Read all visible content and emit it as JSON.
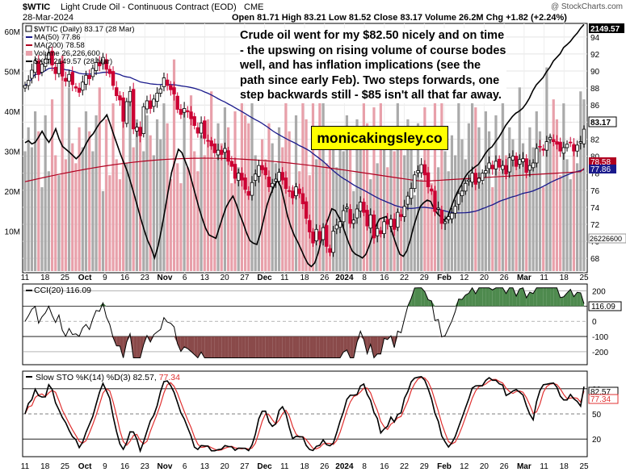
{
  "header": {
    "symbol": "$WTIC",
    "name": "Light Crude Oil - Continuous Contract (EOD)",
    "exchange": "CME",
    "watermark": "@ StockCharts.com",
    "date": "28-Mar-2024",
    "quote": "Open 81.71 High 83.21 Low 81.52 Close 83.17 Volume 26.2M Chg +1.82 (+2.24%)"
  },
  "annotation": {
    "note": "Crude oil went for my $82.50 nicely and on time - the upswing on rising volume of course bodes well, and has inflation implications (see the path since early Feb). Two steps forwards, one step backwards still - $85 isn't all that far away.",
    "site": "monicakingsley.co"
  },
  "legend": {
    "main": "$WTIC (Daily) 83.17 (28 Mar)",
    "ma50": "MA(50) 77.86",
    "ma200": "MA(200) 78.58",
    "volume": "Volume 26,226,600",
    "xoi": "$XOI 2149.57 (28 Mar)",
    "cci": "CCI(20) 116.09",
    "sto_prefix": "Slow STO %K(14) %D(3) 82.57,",
    "sto_d": "77.34"
  },
  "colors": {
    "up": "#000000",
    "down": "#cc0033",
    "ma50": "#1a1a8c",
    "ma200": "#b00020",
    "vol_up": "#aaaaaa",
    "vol_down": "#e8a0aa",
    "cci_fill_pos": "#4e8a4e",
    "cci_fill_neg": "#8a4a4a",
    "sto_d": "#e03030"
  },
  "chart_data": [
    {
      "type": "candlestick",
      "panel": "price",
      "x_labels": [
        "11",
        "18",
        "25",
        "Oct",
        "9",
        "16",
        "23",
        "Nov",
        "6",
        "13",
        "20",
        "27",
        "Dec",
        "11",
        "18",
        "26",
        "2024",
        "8",
        "16",
        "22",
        "29",
        "Feb",
        "12",
        "20",
        "26",
        "Mar",
        "11",
        "18",
        "25"
      ],
      "ylim": [
        66.5,
        95.5
      ],
      "y_ticks": [
        68,
        70,
        72,
        74,
        76,
        78,
        80,
        82,
        84,
        86,
        88,
        90,
        92,
        94
      ],
      "close": [
        88.3,
        88.9,
        90.1,
        91.2,
        89.6,
        90.8,
        91.4,
        92.1,
        90.7,
        89.7,
        90.9,
        89.4,
        88.8,
        89.6,
        88.4,
        88.0,
        87.5,
        88.7,
        89.5,
        89.1,
        90.3,
        91.0,
        90.6,
        91.6,
        90.2,
        89.7,
        88.3,
        87.1,
        86.6,
        84.1,
        86.4,
        87.6,
        83.2,
        83.4,
        82.4,
        85.8,
        86.5,
        85.6,
        86.7,
        87.4,
        87.9,
        89.2,
        88.3,
        87.8,
        87.3,
        85.5,
        84.9,
        85.6,
        85.2,
        84.4,
        83.6,
        82.7,
        83.9,
        82.1,
        81.8,
        81.2,
        80.4,
        80.7,
        80.2,
        80.9,
        79.4,
        78.8,
        77.4,
        78.0,
        77.2,
        76.1,
        75.4,
        76.9,
        77.9,
        78.9,
        78.4,
        77.8,
        76.4,
        76.8,
        77.3,
        78.1,
        77.2,
        76.2,
        75.9,
        75.1,
        76.4,
        75.6,
        74.4,
        72.7,
        71.1,
        69.8,
        71.4,
        70.2,
        71.6,
        69.4,
        68.7,
        71.2,
        71.9,
        72.3,
        73.6,
        74.0,
        72.1,
        72.5,
        73.8,
        74.6,
        73.4,
        71.8,
        73.1,
        70.4,
        71.5,
        70.9,
        72.3,
        72.0,
        72.6,
        71.4,
        73.4,
        72.9,
        74.1,
        75.3,
        76.2,
        77.8,
        78.3,
        79.0,
        77.8,
        76.4,
        75.9,
        73.5,
        73.9,
        72.1,
        72.3,
        72.9,
        73.3,
        74.1,
        75.6,
        75.9,
        76.8,
        77.2,
        78.0,
        76.7,
        77.4,
        78.0,
        78.3,
        79.2,
        78.5,
        79.4,
        78.7,
        78.9,
        77.9,
        79.8,
        80.0,
        78.8,
        79.6,
        79.7,
        78.1,
        78.9,
        79.2,
        80.9,
        81.1,
        80.7,
        81.7,
        82.2,
        81.7,
        81.4,
        80.6,
        81.0,
        81.4,
        81.6,
        80.6,
        81.3,
        81.7,
        83.17
      ]
    },
    {
      "type": "line",
      "panel": "price",
      "name": "$XOI",
      "ylim_secondary": [
        1548,
        2150
      ],
      "y": [
        1861,
        1866,
        1858,
        1862,
        1875,
        1889,
        1874,
        1862,
        1876,
        1895,
        1870,
        1852,
        1845,
        1838,
        1830,
        1822,
        1830,
        1843,
        1860,
        1874,
        1883,
        1897,
        1910,
        1918,
        1929,
        1906,
        1881,
        1857,
        1833,
        1812,
        1791,
        1764,
        1735,
        1705,
        1675,
        1647,
        1622,
        1604,
        1580,
        1608,
        1648,
        1694,
        1743,
        1789,
        1817,
        1845,
        1837,
        1816,
        1795,
        1765,
        1734,
        1703,
        1676,
        1652,
        1636,
        1632,
        1628,
        1654,
        1680,
        1704,
        1719,
        1731,
        1711,
        1686,
        1665,
        1641,
        1622,
        1616,
        1613,
        1639,
        1673,
        1709,
        1734,
        1754,
        1769,
        1755,
        1721,
        1683,
        1656,
        1635,
        1619,
        1601,
        1582,
        1566,
        1559,
        1568,
        1592,
        1626,
        1655,
        1677,
        1700,
        1696,
        1681,
        1663,
        1639,
        1616,
        1597,
        1589,
        1585,
        1580,
        1589,
        1610,
        1635,
        1659,
        1675,
        1678,
        1681,
        1662,
        1635,
        1610,
        1589,
        1584,
        1597,
        1623,
        1656,
        1683,
        1706,
        1715,
        1721,
        1718,
        1700,
        1688,
        1680,
        1672,
        1681,
        1703,
        1725,
        1743,
        1758,
        1776,
        1788,
        1795,
        1802,
        1808,
        1820,
        1834,
        1845,
        1851,
        1863,
        1874,
        1888,
        1903,
        1914,
        1925,
        1933,
        1938,
        1945,
        1956,
        1970,
        1988,
        2002,
        2011,
        2020,
        2034,
        2045,
        2060,
        2069,
        2078,
        2093,
        2100,
        2108,
        2119,
        2128,
        2140,
        2149.57
      ]
    },
    {
      "type": "bar",
      "panel": "volume",
      "y_ticks": [
        "10M",
        "20M",
        "30M",
        "40M",
        "50M",
        "60M"
      ],
      "last": "26226600"
    },
    {
      "type": "line",
      "panel": "cci",
      "name": "CCI(20)",
      "ylim": [
        -280,
        240
      ],
      "y_ticks": [
        -200,
        -100,
        0,
        100,
        200
      ],
      "last": 116.09
    },
    {
      "type": "line",
      "panel": "stochastic",
      "name": "Slow STO",
      "ylim": [
        0,
        100
      ],
      "y_ticks": [
        20,
        50,
        80
      ],
      "k_last": 82.57,
      "d_last": 77.34
    }
  ],
  "right_labels": {
    "xoi_value": "2149.57",
    "price_value": "83.17",
    "ma200_value": "78.58",
    "ma50_value": "77.86",
    "volume_value": "26226600",
    "cci_value": "116.09",
    "sto_k_value": "82.57",
    "sto_d_value": "77.34"
  }
}
